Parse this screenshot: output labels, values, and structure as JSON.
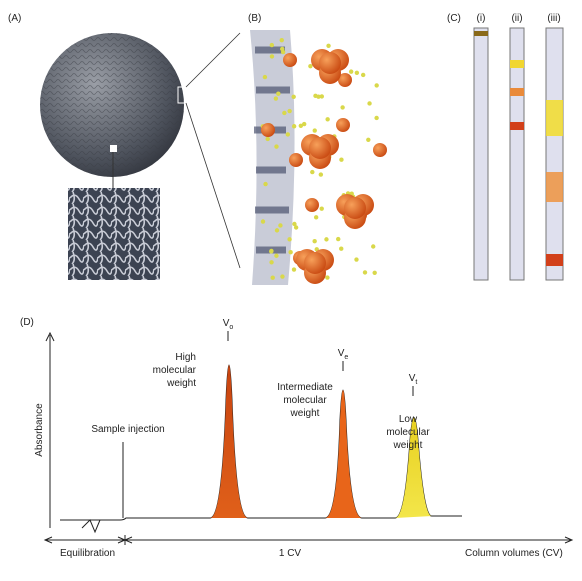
{
  "panels": {
    "a": "(A)",
    "b": "(B)",
    "c": "(C)",
    "d": "(D)"
  },
  "columns": [
    "(i)",
    "(ii)",
    "(iii)"
  ],
  "volumes": [
    {
      "main": "V",
      "sub": "o"
    },
    {
      "main": "V",
      "sub": "e"
    },
    {
      "main": "V",
      "sub": "t"
    }
  ],
  "peaks": [
    [
      "High",
      "molecular",
      "weight"
    ],
    [
      "Intermediate",
      "molecular",
      "weight"
    ],
    [
      "Low",
      "molecular",
      "weight"
    ]
  ],
  "injection": "Sample injection",
  "y_axis": "Absorbance",
  "x_axis": {
    "equilibration": "Equilibration",
    "one_cv": "1 CV",
    "unit": "Column volumes (CV)"
  }
}
